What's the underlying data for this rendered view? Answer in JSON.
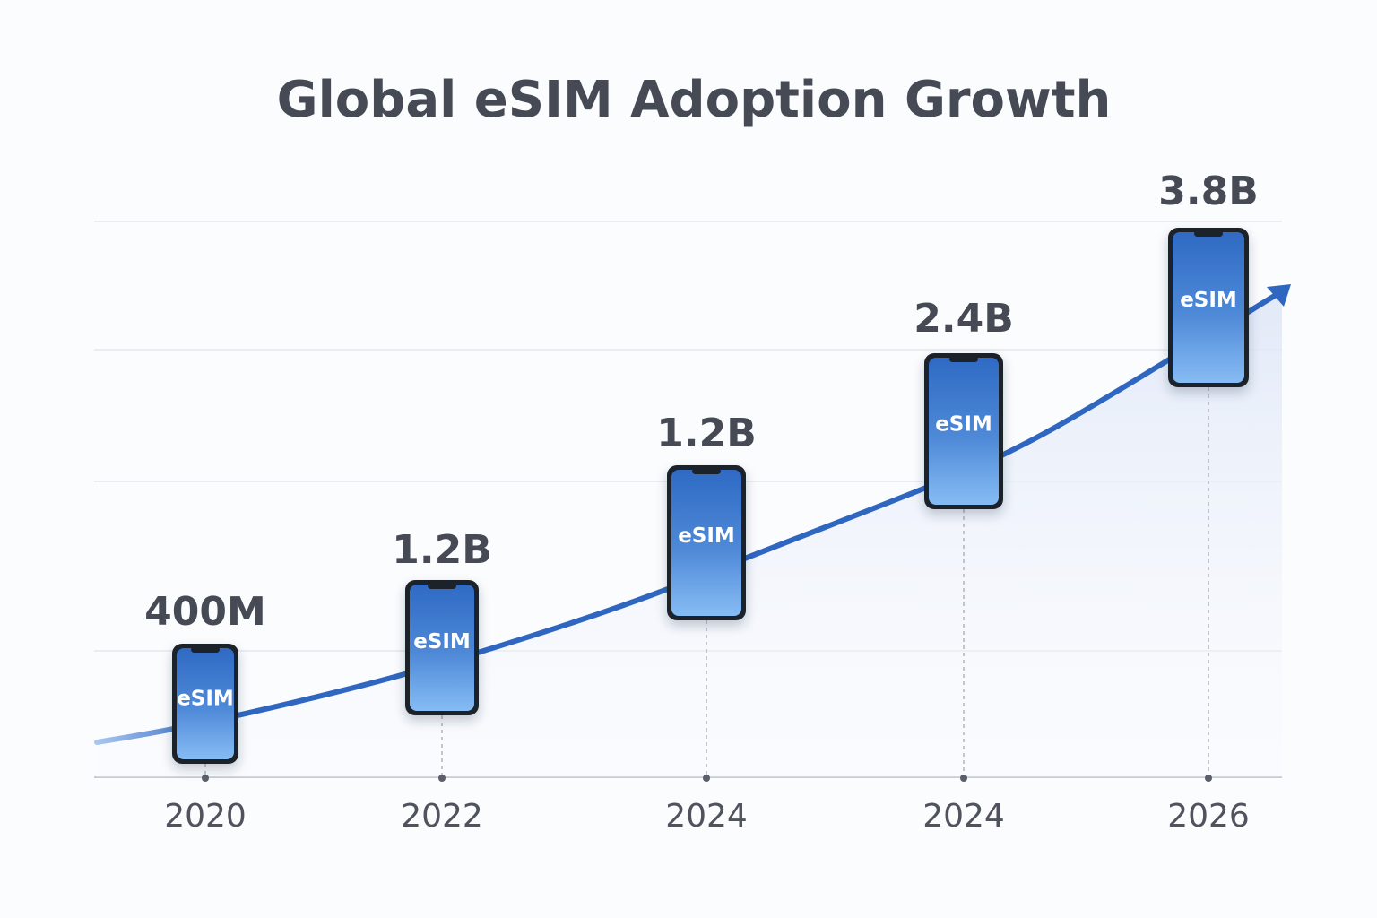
{
  "chart_data": {
    "type": "line",
    "title": "Global eSIM Adoption Growth",
    "categories": [
      "2020",
      "2022",
      "2024",
      "2024",
      "2026"
    ],
    "value_labels": [
      "400M",
      "1.2B",
      "1.2B",
      "2.4B",
      "3.8B"
    ],
    "values": [
      0.4,
      1.2,
      1.2,
      2.4,
      3.8
    ],
    "units": "billions",
    "marker_label": "eSIM",
    "marker_icon": "smartphone-icon",
    "grid": true,
    "trend_arrow": true,
    "colors": {
      "line": "#2f66c0",
      "phone_top": "#2f6ac4",
      "phone_bottom": "#7fb6f2",
      "text": "#454a54"
    }
  }
}
